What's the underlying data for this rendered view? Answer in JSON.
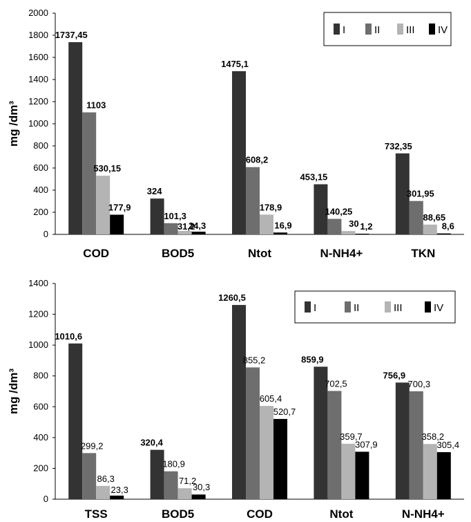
{
  "chart_data": [
    {
      "type": "bar",
      "ylabel": "mg /dm³",
      "ylim": [
        0,
        2000
      ],
      "yticks": [
        0,
        200,
        400,
        600,
        800,
        1000,
        1200,
        1400,
        1600,
        1800,
        2000
      ],
      "categories": [
        "COD",
        "BOD5",
        "Ntot",
        "N-NH4+",
        "TKN"
      ],
      "legend_position": "top-right",
      "series": [
        {
          "name": "I",
          "color": "#333333",
          "values": [
            1737.45,
            324,
            1475.1,
            453.15,
            732.35
          ],
          "labels": [
            "1737,45",
            "324",
            "1475,1",
            "453,15",
            "732,35"
          ]
        },
        {
          "name": "II",
          "color": "#6e6e6e",
          "values": [
            1103,
            101.3,
            608.2,
            140.25,
            301.95
          ],
          "labels": [
            "1103",
            "101,3",
            "608,2",
            "140,25",
            "301,95"
          ]
        },
        {
          "name": "III",
          "color": "#b4b4b4",
          "values": [
            530.15,
            31.2,
            178.9,
            30,
            88.65
          ],
          "labels": [
            "530,15",
            "31,2",
            "178,9",
            "30",
            "88,65"
          ]
        },
        {
          "name": "IV",
          "color": "#000000",
          "values": [
            177.9,
            24.3,
            16.9,
            1.2,
            8.6
          ],
          "labels": [
            "177,9",
            "24,3",
            "16,9",
            "1,2",
            "8,6"
          ]
        }
      ]
    },
    {
      "type": "bar",
      "ylabel": "mg /dm³",
      "ylim": [
        0,
        1400
      ],
      "yticks": [
        0,
        200,
        400,
        600,
        800,
        1000,
        1200,
        1400
      ],
      "categories": [
        "TSS",
        "BOD5",
        "COD",
        "Ntot",
        "N-NH4+"
      ],
      "legend_position": "top-right",
      "series": [
        {
          "name": "I",
          "color": "#333333",
          "values": [
            1010.6,
            320.4,
            1260.5,
            859.9,
            756.9
          ],
          "labels": [
            "1010,6",
            "320,4",
            "1260,5",
            "859,9",
            "756,9"
          ]
        },
        {
          "name": "II",
          "color": "#6e6e6e",
          "values": [
            299.2,
            180.9,
            855.2,
            702.5,
            700.3
          ],
          "labels": [
            "299,2",
            "180,9",
            "855,2",
            "702,5",
            "700,3"
          ]
        },
        {
          "name": "III",
          "color": "#b4b4b4",
          "values": [
            86.3,
            71.2,
            605.4,
            359.7,
            358.2
          ],
          "labels": [
            "86,3",
            "71,2",
            "605,4",
            "359,7",
            "358,2"
          ]
        },
        {
          "name": "IV",
          "color": "#000000",
          "values": [
            23.3,
            30.3,
            520.7,
            307.9,
            305.4
          ],
          "labels": [
            "23,3",
            "30,3",
            "520,7",
            "307,9",
            "305,4"
          ]
        }
      ]
    }
  ]
}
